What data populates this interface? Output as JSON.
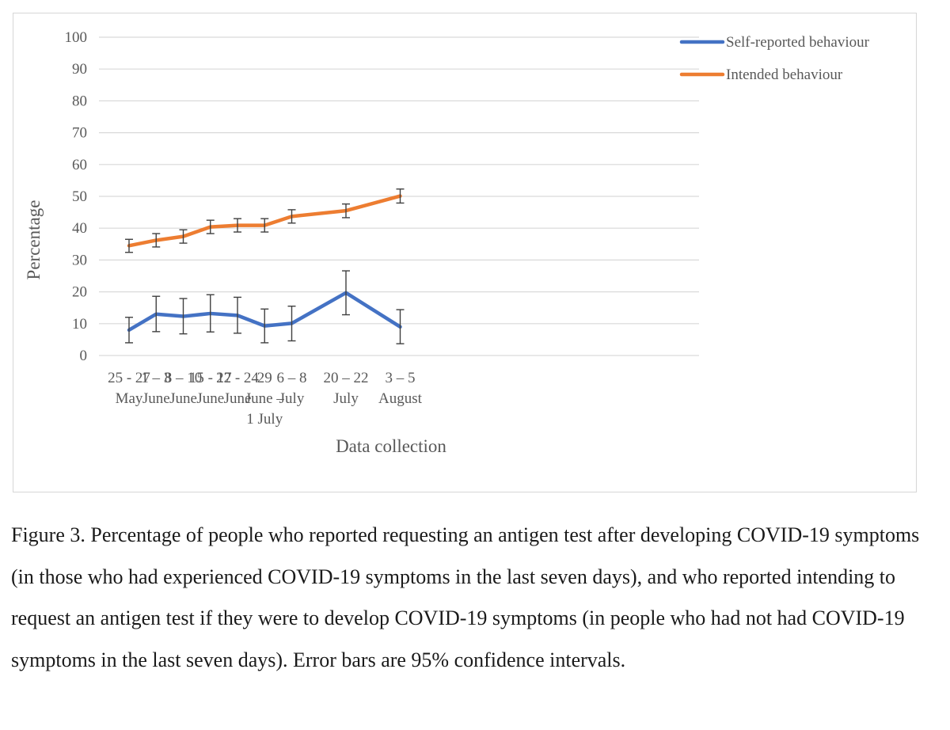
{
  "chart_data": {
    "type": "line",
    "title": "",
    "xlabel": "Data collection",
    "ylabel": "Percentage",
    "ylim": [
      0,
      100
    ],
    "yticks": [
      0,
      10,
      20,
      30,
      40,
      50,
      60,
      70,
      80,
      90,
      100
    ],
    "grid": true,
    "legend_position": "top-right",
    "categories": [
      [
        "25 - 27",
        "May"
      ],
      [
        "1 – 3",
        "June"
      ],
      [
        "8 – 10",
        "June"
      ],
      [
        "15 - 17",
        "June"
      ],
      [
        "22 - 24",
        "June"
      ],
      [
        "29",
        "June –",
        "1 July"
      ],
      [
        "6 – 8",
        "July"
      ],
      [
        "20 – 22",
        "July"
      ],
      [
        "3 – 5",
        "August"
      ]
    ],
    "x_positions": [
      0,
      1,
      2,
      3,
      4,
      5,
      6,
      8,
      10
    ],
    "series": [
      {
        "name": "Self-reported behaviour",
        "color": "#4472C4",
        "values": [
          8.0,
          13.0,
          12.3,
          13.2,
          12.6,
          9.3,
          10.1,
          19.7,
          9.0
        ],
        "ci_low": [
          4.0,
          7.5,
          6.8,
          7.4,
          7.0,
          4.0,
          4.6,
          12.8,
          3.7
        ],
        "ci_high": [
          12.0,
          18.6,
          17.9,
          19.1,
          18.3,
          14.6,
          15.5,
          26.6,
          14.4
        ]
      },
      {
        "name": "Intended behaviour",
        "color": "#ED7D31",
        "values": [
          34.5,
          36.2,
          37.4,
          40.4,
          40.9,
          40.9,
          43.7,
          45.5,
          50.1
        ],
        "ci_low": [
          32.4,
          34.1,
          35.3,
          38.3,
          38.8,
          38.8,
          41.6,
          43.3,
          47.9
        ],
        "ci_high": [
          36.5,
          38.3,
          39.5,
          42.5,
          43.0,
          43.0,
          45.8,
          47.6,
          52.3
        ]
      }
    ],
    "error_bar_color": "#404040"
  },
  "caption": {
    "text": "Figure 3. Percentage of people who reported requesting an antigen test after developing COVID-19 symptoms (in those who had experienced COVID-19 symptoms in the last seven days), and who reported intending to request an antigen test if they were to develop COVID-19 symptoms (in people who had not had COVID-19 symptoms in the last seven days). Error bars are 95% confidence intervals."
  }
}
